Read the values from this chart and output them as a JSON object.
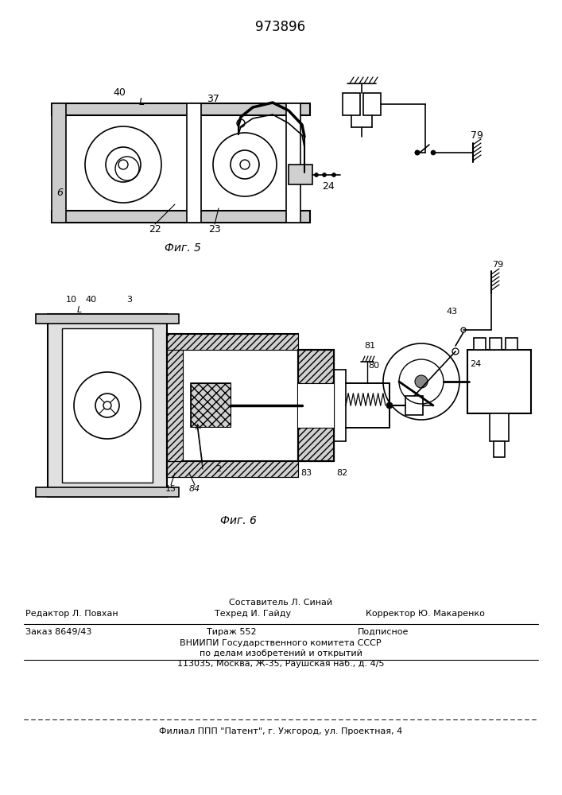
{
  "title": "973896",
  "fig5_label": "Фиг. 5",
  "fig6_label": "Фиг. 6",
  "line_color": "#000000",
  "bg_color": "#ffffff",
  "footer_sestavitel": "Составитель Л. Синай",
  "footer_redaktor": "Редактор Л. Повхан",
  "footer_tehred": "Техред И. Гайду",
  "footer_korrektor": "Корректор Ю. Макаренко",
  "footer_zakaz": "Заказ 8649/43",
  "footer_tirazh": "Тираж 552",
  "footer_podpisnoe": "Подписное",
  "footer_vniip1": "ВНИИПИ Государственного комитета СССР",
  "footer_vniip2": "по делам изобретений и открытий",
  "footer_addr": "113035, Москва, Ж-35, Раушская наб., д. 4/5",
  "footer_filial": "Филиал ППП \"Патент\", г. Ужгород, ул. Проектная, 4"
}
